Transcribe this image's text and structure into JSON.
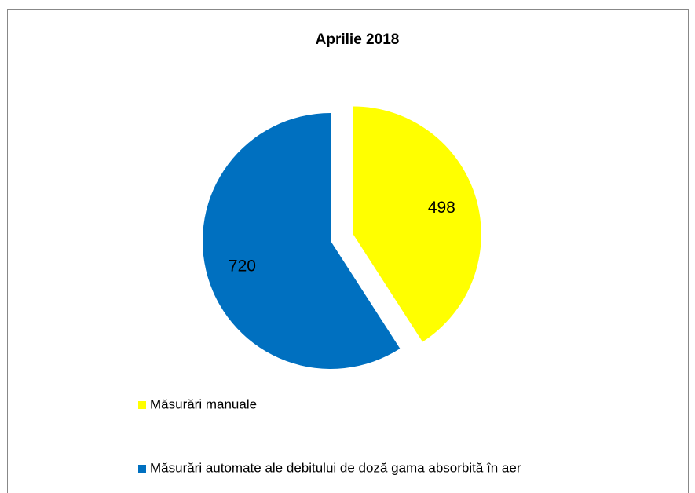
{
  "chart_data": {
    "type": "pie",
    "title": "Aprilie 2018",
    "categories": [
      "Măsurări manuale",
      "Măsurări automate ale debitului de doză gama absorbită în aer"
    ],
    "values": [
      498,
      720
    ],
    "colors": [
      "#ffff00",
      "#0070c0"
    ],
    "exploded": [
      true,
      false
    ]
  }
}
